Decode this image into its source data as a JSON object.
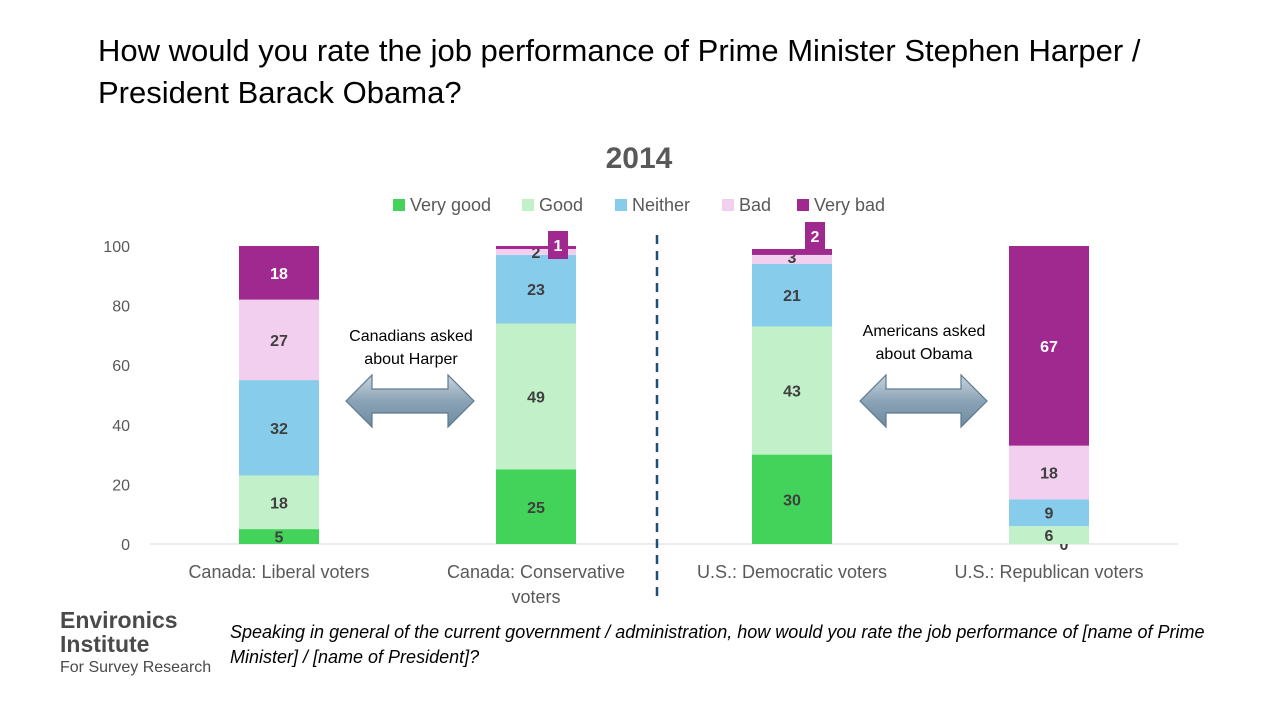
{
  "page": {
    "title": "How would you rate the job performance of Prime Minister Stephen Harper / President Barack Obama?",
    "footnote": "Speaking in general of the current government / administration, how would you rate the job performance of [name of Prime Minister] / [name of President]?",
    "logo": {
      "name_line1": "Environics",
      "name_line2": "Institute",
      "subtitle": "For Survey Research"
    }
  },
  "annotations": {
    "left": [
      "Canadians asked",
      "about Harper"
    ],
    "right": [
      "Americans asked",
      "about Obama"
    ]
  },
  "chart_data": {
    "type": "bar",
    "stacked": true,
    "title": "2014",
    "categories": [
      "Canada: Liberal voters",
      "Canada: Conservative voters",
      "U.S.: Democratic voters",
      "U.S.: Republican voters"
    ],
    "category_lines": [
      [
        "Canada: Liberal voters"
      ],
      [
        "Canada: Conservative",
        "voters"
      ],
      [
        "U.S.: Democratic voters"
      ],
      [
        "U.S.: Republican voters"
      ]
    ],
    "series": [
      {
        "name": "Very good",
        "color": "#43d35a",
        "label_color": "#3f3f3f",
        "values": [
          5,
          25,
          30,
          0
        ]
      },
      {
        "name": "Good",
        "color": "#c2f0c8",
        "label_color": "#3f3f3f",
        "values": [
          18,
          49,
          43,
          6
        ]
      },
      {
        "name": "Neither",
        "color": "#87ccea",
        "label_color": "#3f3f3f",
        "values": [
          32,
          23,
          21,
          9
        ]
      },
      {
        "name": "Bad",
        "color": "#f2cfee",
        "label_color": "#3f3f3f",
        "values": [
          27,
          2,
          3,
          18
        ]
      },
      {
        "name": "Very bad",
        "color": "#a0298f",
        "label_color": "#ffffff",
        "values": [
          18,
          1,
          2,
          67
        ]
      }
    ],
    "ylim": [
      0,
      100
    ],
    "yticks": [
      0,
      20,
      40,
      60,
      80,
      100
    ],
    "grid": false,
    "legend": "top",
    "divider": "dashed vertical line between Canada and U.S. groups"
  }
}
